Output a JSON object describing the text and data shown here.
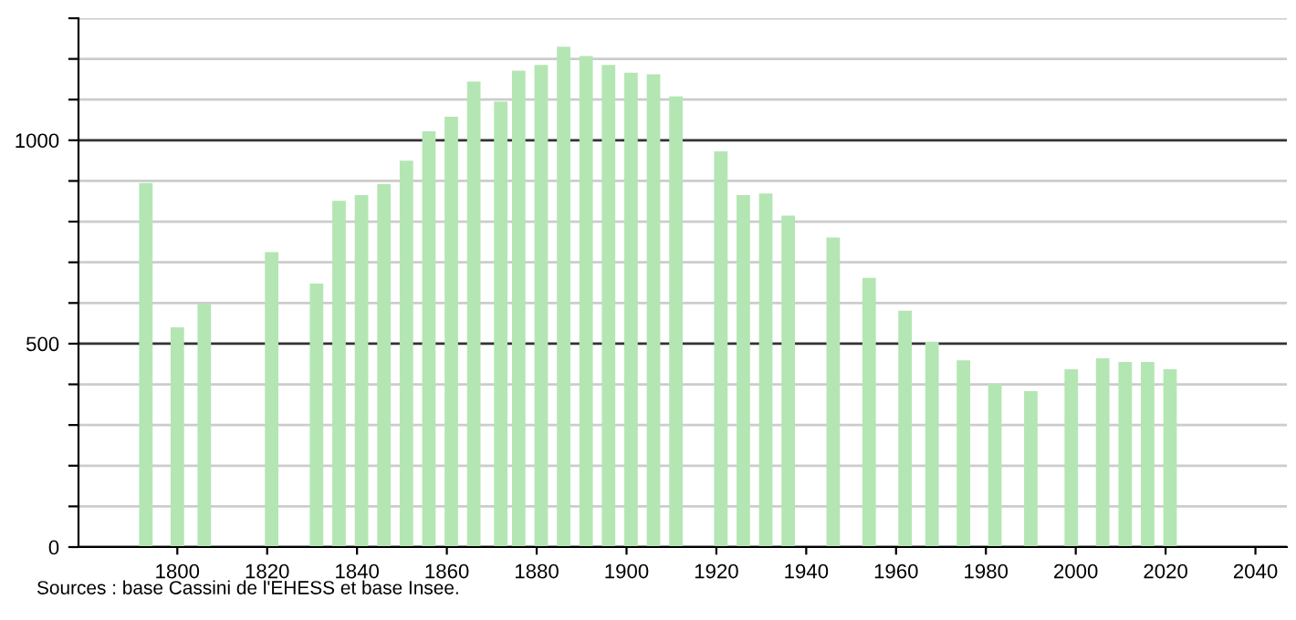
{
  "chart_data": {
    "type": "bar",
    "color": "#b3e6b3",
    "x": [
      1793,
      1800,
      1806,
      1821,
      1831,
      1836,
      1841,
      1846,
      1851,
      1856,
      1861,
      1866,
      1872,
      1876,
      1881,
      1886,
      1891,
      1896,
      1901,
      1906,
      1911,
      1921,
      1926,
      1931,
      1936,
      1946,
      1954,
      1962,
      1968,
      1975,
      1982,
      1990,
      1999,
      2006,
      2011,
      2016,
      2021
    ],
    "values": [
      895,
      540,
      598,
      725,
      648,
      851,
      865,
      892,
      950,
      1022,
      1058,
      1144,
      1095,
      1171,
      1185,
      1230,
      1207,
      1185,
      1166,
      1162,
      1108,
      973,
      865,
      869,
      815,
      761,
      662,
      581,
      505,
      459,
      401,
      383,
      437,
      464,
      455,
      455,
      437
    ],
    "xlim": [
      1778,
      2047
    ],
    "xticks": [
      1800,
      1820,
      1840,
      1860,
      1880,
      1900,
      1920,
      1940,
      1960,
      1980,
      2000,
      2020,
      2040
    ],
    "ylim": [
      0,
      1300
    ],
    "yticks": [
      0,
      {
        "value": 100,
        "label": null
      },
      {
        "value": 200,
        "label": null
      },
      {
        "value": 300,
        "label": null
      },
      {
        "value": 400,
        "label": null
      },
      500,
      {
        "value": 600,
        "label": null
      },
      {
        "value": 700,
        "label": null
      },
      {
        "value": 800,
        "label": null
      },
      {
        "value": 900,
        "label": null
      },
      1000,
      {
        "value": 1100,
        "label": null
      },
      {
        "value": 1200,
        "label": null
      },
      {
        "value": 1300,
        "label": null
      }
    ],
    "grid": "y",
    "annotations": [
      "Sources : base Cassini de l'EHESS et base Insee."
    ]
  }
}
